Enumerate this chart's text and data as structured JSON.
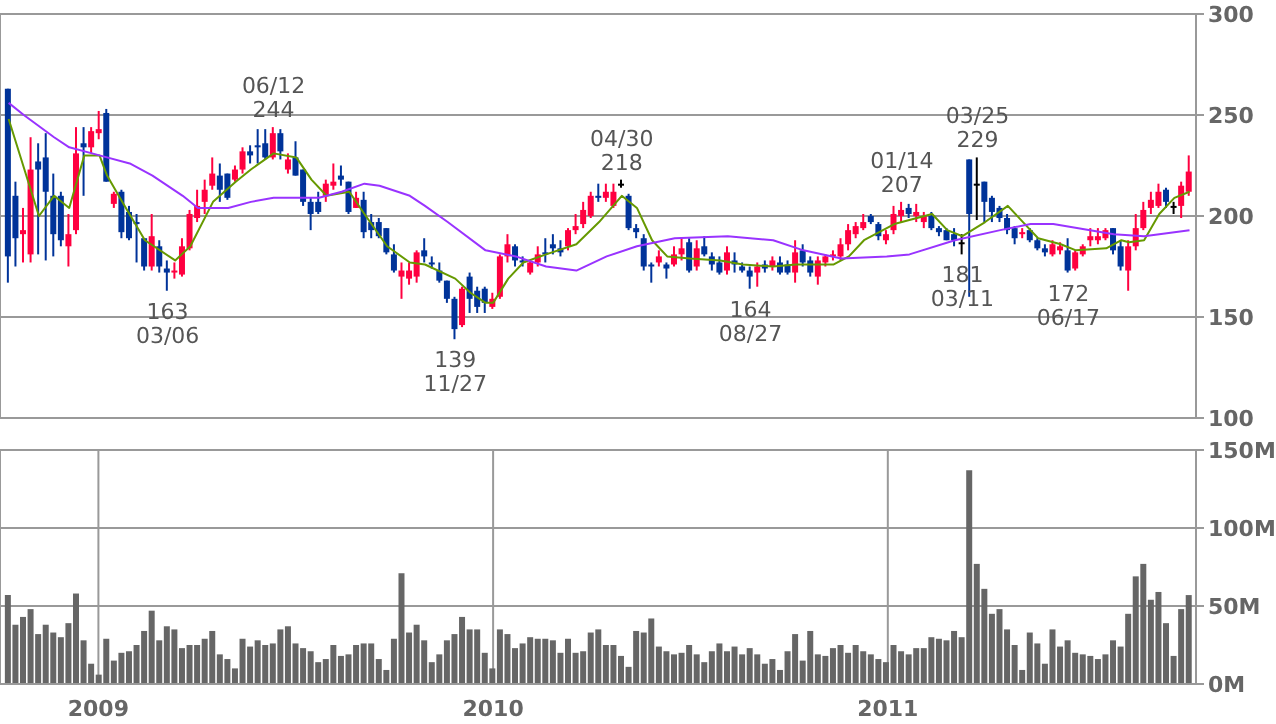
{
  "chart_data": [
    {
      "type": "candlestick",
      "x": [
        "2008-10-10",
        "2008-10-17",
        "2008-10-24",
        "2008-10-31",
        "2008-11-07",
        "2008-11-14",
        "2008-11-21",
        "2008-11-28",
        "2008-12-05",
        "2008-12-12",
        "2008-12-19",
        "2008-12-26",
        "2009-01-02",
        "2009-01-09",
        "2009-01-16",
        "2009-01-23",
        "2009-01-30",
        "2009-02-06",
        "2009-02-13",
        "2009-02-20",
        "2009-02-27",
        "2009-03-06",
        "2009-03-13",
        "2009-03-20",
        "2009-03-27",
        "2009-04-03",
        "2009-04-10",
        "2009-04-17",
        "2009-04-24",
        "2009-05-01",
        "2009-05-08",
        "2009-05-15",
        "2009-05-22",
        "2009-05-29",
        "2009-06-05",
        "2009-06-12",
        "2009-06-19",
        "2009-06-26",
        "2009-07-03",
        "2009-07-10",
        "2009-07-17",
        "2009-07-24",
        "2009-07-31",
        "2009-08-07",
        "2009-08-14",
        "2009-08-21",
        "2009-08-28",
        "2009-09-04",
        "2009-09-11",
        "2009-09-18",
        "2009-09-25",
        "2009-10-02",
        "2009-10-09",
        "2009-10-16",
        "2009-10-23",
        "2009-10-30",
        "2009-11-06",
        "2009-11-13",
        "2009-11-20",
        "2009-11-27",
        "2009-12-04",
        "2009-12-11",
        "2009-12-18",
        "2009-12-25",
        "2010-01-01",
        "2010-01-08",
        "2010-01-15",
        "2010-01-22",
        "2010-01-29",
        "2010-02-05",
        "2010-02-12",
        "2010-02-19",
        "2010-02-26",
        "2010-03-05",
        "2010-03-12",
        "2010-03-19",
        "2010-03-26",
        "2010-04-02",
        "2010-04-09",
        "2010-04-16",
        "2010-04-23",
        "2010-04-30",
        "2010-05-07",
        "2010-05-14",
        "2010-05-21",
        "2010-05-28",
        "2010-06-04",
        "2010-06-11",
        "2010-06-18",
        "2010-06-25",
        "2010-07-02",
        "2010-07-09",
        "2010-07-16",
        "2010-07-23",
        "2010-07-30",
        "2010-08-06",
        "2010-08-13",
        "2010-08-20",
        "2010-08-27",
        "2010-09-03",
        "2010-09-10",
        "2010-09-17",
        "2010-09-24",
        "2010-10-01",
        "2010-10-08",
        "2010-10-15",
        "2010-10-22",
        "2010-10-29",
        "2010-11-05",
        "2010-11-12",
        "2010-11-19",
        "2010-11-26",
        "2010-12-03",
        "2010-12-10",
        "2010-12-17",
        "2010-12-24",
        "2010-12-31",
        "2011-01-07",
        "2011-01-14",
        "2011-01-21",
        "2011-01-28",
        "2011-02-04",
        "2011-02-11",
        "2011-02-18",
        "2011-02-25",
        "2011-03-04",
        "2011-03-11",
        "2011-03-18",
        "2011-03-25",
        "2011-04-01",
        "2011-04-08",
        "2011-04-15",
        "2011-04-22",
        "2011-04-29",
        "2011-05-06",
        "2011-05-13",
        "2011-05-20",
        "2011-05-27",
        "2011-06-03",
        "2011-06-10",
        "2011-06-17",
        "2011-06-24",
        "2011-07-01",
        "2011-07-08",
        "2011-07-15",
        "2011-07-22",
        "2011-07-29",
        "2011-08-05",
        "2011-08-12",
        "2011-08-19",
        "2011-08-26",
        "2011-09-02",
        "2011-09-09",
        "2011-09-16",
        "2011-09-23",
        "2011-09-30",
        "2011-10-07"
      ],
      "ohlc": [
        [
          263,
          263,
          167,
          180
        ],
        [
          210,
          217,
          175,
          189
        ],
        [
          191,
          204,
          177,
          193
        ],
        [
          181,
          239,
          177,
          223
        ],
        [
          227,
          236,
          181,
          223
        ],
        [
          229,
          241,
          178,
          212
        ],
        [
          210,
          221,
          180,
          191
        ],
        [
          210,
          212,
          185,
          188
        ],
        [
          185,
          201,
          175,
          191
        ],
        [
          193,
          244,
          191,
          231
        ],
        [
          236,
          244,
          210,
          234
        ],
        [
          234,
          244,
          231,
          242
        ],
        [
          241,
          252,
          238,
          243
        ],
        [
          251,
          253,
          217,
          217
        ],
        [
          206,
          212,
          204,
          211
        ],
        [
          212,
          213,
          189,
          192
        ],
        [
          202,
          205,
          188,
          189
        ],
        [
          197,
          201,
          177,
          196
        ],
        [
          189,
          189,
          173,
          175
        ],
        [
          175,
          201,
          173,
          190
        ],
        [
          185,
          188,
          172,
          175
        ],
        [
          174,
          178,
          163,
          172
        ],
        [
          172,
          177,
          169,
          173
        ],
        [
          171,
          189,
          170,
          185
        ],
        [
          184,
          203,
          183,
          201
        ],
        [
          199,
          213,
          197,
          205
        ],
        [
          207,
          218,
          201,
          213
        ],
        [
          215,
          229,
          213,
          221
        ],
        [
          220,
          226,
          207,
          213
        ],
        [
          221,
          221,
          208,
          209
        ],
        [
          218,
          225,
          217,
          223
        ],
        [
          223,
          234,
          221,
          232
        ],
        [
          232,
          235,
          226,
          230
        ],
        [
          235,
          243,
          226,
          234
        ],
        [
          236,
          243,
          228,
          229
        ],
        [
          229,
          244,
          228,
          241
        ],
        [
          241,
          243,
          228,
          232
        ],
        [
          223,
          231,
          221,
          228
        ],
        [
          229,
          237,
          220,
          220
        ],
        [
          223,
          223,
          205,
          207
        ],
        [
          207,
          209,
          193,
          201
        ],
        [
          207,
          212,
          201,
          202
        ],
        [
          210,
          218,
          207,
          216
        ],
        [
          215,
          226,
          213,
          217
        ],
        [
          220,
          225,
          215,
          218
        ],
        [
          217,
          217,
          201,
          202
        ],
        [
          204,
          212,
          204,
          209
        ],
        [
          208,
          212,
          189,
          192
        ],
        [
          197,
          201,
          189,
          193
        ],
        [
          197,
          199,
          189,
          190
        ],
        [
          194,
          194,
          181,
          182
        ],
        [
          181,
          186,
          172,
          173
        ],
        [
          170,
          177,
          159,
          173
        ],
        [
          169,
          177,
          166,
          173
        ],
        [
          170,
          183,
          167,
          182
        ],
        [
          183,
          189,
          177,
          180
        ],
        [
          177,
          180,
          174,
          176
        ],
        [
          173,
          177,
          167,
          168
        ],
        [
          168,
          168,
          157,
          159
        ],
        [
          159,
          160,
          139,
          144
        ],
        [
          146,
          165,
          145,
          164
        ],
        [
          170,
          172,
          152,
          159
        ],
        [
          163,
          165,
          152,
          155
        ],
        [
          164,
          165,
          152,
          157
        ],
        [
          155,
          162,
          154,
          159
        ],
        [
          160,
          181,
          159,
          180
        ],
        [
          180,
          191,
          177,
          186
        ],
        [
          185,
          186,
          175,
          178
        ],
        [
          178,
          180,
          175,
          177
        ],
        [
          172,
          178,
          171,
          177
        ],
        [
          177,
          185,
          175,
          181
        ],
        [
          182,
          189,
          177,
          181
        ],
        [
          186,
          191,
          181,
          184
        ],
        [
          184,
          188,
          180,
          182
        ],
        [
          185,
          194,
          183,
          193
        ],
        [
          193,
          201,
          191,
          195
        ],
        [
          196,
          207,
          194,
          203
        ],
        [
          200,
          212,
          199,
          210
        ],
        [
          210,
          216,
          207,
          209
        ],
        [
          209,
          216,
          207,
          212
        ],
        [
          205,
          216,
          204,
          212
        ],
        [
          216,
          218,
          214,
          216
        ],
        [
          210,
          211,
          193,
          194
        ],
        [
          194,
          196,
          189,
          192
        ],
        [
          189,
          191,
          173,
          175
        ],
        [
          176,
          177,
          167,
          175
        ],
        [
          177,
          183,
          175,
          180
        ],
        [
          176,
          177,
          169,
          174
        ],
        [
          176,
          185,
          175,
          181
        ],
        [
          181,
          189,
          178,
          184
        ],
        [
          187,
          189,
          172,
          173
        ],
        [
          175,
          188,
          173,
          184
        ],
        [
          185,
          190,
          180,
          181
        ],
        [
          180,
          182,
          173,
          176
        ],
        [
          177,
          180,
          171,
          172
        ],
        [
          173,
          185,
          171,
          182
        ],
        [
          178,
          182,
          172,
          176
        ],
        [
          175,
          177,
          172,
          173
        ],
        [
          173,
          175,
          164,
          170
        ],
        [
          172,
          177,
          165,
          175
        ],
        [
          176,
          178,
          172,
          174
        ],
        [
          175,
          180,
          173,
          178
        ],
        [
          177,
          180,
          171,
          172
        ],
        [
          176,
          178,
          171,
          172
        ],
        [
          172,
          188,
          167,
          182
        ],
        [
          183,
          186,
          175,
          177
        ],
        [
          178,
          180,
          170,
          172
        ],
        [
          170,
          180,
          166,
          178
        ],
        [
          177,
          181,
          175,
          180
        ],
        [
          180,
          183,
          178,
          181
        ],
        [
          180,
          189,
          178,
          186
        ],
        [
          186,
          196,
          183,
          193
        ],
        [
          191,
          197,
          189,
          195
        ],
        [
          194,
          201,
          193,
          197
        ],
        [
          200,
          201,
          196,
          197
        ],
        [
          196,
          197,
          188,
          190
        ],
        [
          188,
          193,
          186,
          191
        ],
        [
          193,
          205,
          191,
          201
        ],
        [
          200,
          207,
          197,
          203
        ],
        [
          204,
          206,
          199,
          201
        ],
        [
          200,
          206,
          197,
          202
        ],
        [
          197,
          202,
          194,
          200
        ],
        [
          200,
          202,
          193,
          194
        ],
        [
          194,
          195,
          190,
          192
        ],
        [
          193,
          194,
          188,
          188
        ],
        [
          191,
          194,
          185,
          188
        ],
        [
          187,
          191,
          181,
          187
        ],
        [
          228,
          228,
          160,
          201
        ],
        [
          216,
          229,
          198,
          216
        ],
        [
          217,
          217,
          197,
          207
        ],
        [
          209,
          210,
          197,
          202
        ],
        [
          204,
          205,
          197,
          199
        ],
        [
          199,
          201,
          191,
          193
        ],
        [
          194,
          195,
          186,
          189
        ],
        [
          191,
          194,
          189,
          192
        ],
        [
          193,
          194,
          187,
          188
        ],
        [
          188,
          189,
          183,
          184
        ],
        [
          184,
          186,
          180,
          182
        ],
        [
          181,
          188,
          180,
          186
        ],
        [
          183,
          187,
          181,
          185
        ],
        [
          183,
          189,
          172,
          173
        ],
        [
          174,
          183,
          173,
          182
        ],
        [
          181,
          186,
          180,
          185
        ],
        [
          188,
          194,
          185,
          190
        ],
        [
          188,
          194,
          186,
          190
        ],
        [
          189,
          194,
          188,
          193
        ],
        [
          194,
          194,
          181,
          183
        ],
        [
          185,
          188,
          173,
          175
        ],
        [
          173,
          188,
          163,
          185
        ],
        [
          185,
          201,
          183,
          194
        ],
        [
          194,
          207,
          193,
          203
        ],
        [
          204,
          212,
          201,
          208
        ],
        [
          205,
          216,
          204,
          212
        ],
        [
          213,
          214,
          204,
          207
        ],
        [
          205,
          207,
          201,
          205
        ],
        [
          205,
          217,
          199,
          215
        ],
        [
          212,
          230,
          210,
          222
        ]
      ],
      "colors": [
        "#003399",
        "#003399",
        "#ff0040",
        "#ff0040",
        "#003399",
        "#003399",
        "#003399",
        "#003399",
        "#ff0040",
        "#ff0040",
        "#003399",
        "#ff0040",
        "#ff0040",
        "#003399",
        "#ff0040",
        "#003399",
        "#003399",
        "#003399",
        "#003399",
        "#ff0040",
        "#003399",
        "#003399",
        "#ff0040",
        "#ff0040",
        "#ff0040",
        "#ff0040",
        "#ff0040",
        "#ff0040",
        "#003399",
        "#003399",
        "#ff0040",
        "#ff0040",
        "#003399",
        "#003399",
        "#003399",
        "#ff0040",
        "#003399",
        "#ff0040",
        "#003399",
        "#003399",
        "#003399",
        "#003399",
        "#ff0040",
        "#ff0040",
        "#003399",
        "#003399",
        "#ff0040",
        "#003399",
        "#003399",
        "#003399",
        "#003399",
        "#003399",
        "#ff0040",
        "#ff0040",
        "#ff0040",
        "#003399",
        "#003399",
        "#003399",
        "#003399",
        "#003399",
        "#ff0040",
        "#003399",
        "#003399",
        "#003399",
        "#ff0040",
        "#ff0040",
        "#ff0040",
        "#003399",
        "#003399",
        "#ff0040",
        "#ff0040",
        "#003399",
        "#003399",
        "#003399",
        "#ff0040",
        "#ff0040",
        "#ff0040",
        "#ff0040",
        "#003399",
        "#ff0040",
        "#ff0040",
        "#000000",
        "#003399",
        "#003399",
        "#003399",
        "#003399",
        "#ff0040",
        "#003399",
        "#ff0040",
        "#ff0040",
        "#003399",
        "#ff0040",
        "#003399",
        "#003399",
        "#003399",
        "#ff0040",
        "#003399",
        "#003399",
        "#003399",
        "#ff0040",
        "#003399",
        "#ff0040",
        "#003399",
        "#003399",
        "#ff0040",
        "#003399",
        "#003399",
        "#ff0040",
        "#ff0040",
        "#ff0040",
        "#ff0040",
        "#ff0040",
        "#ff0040",
        "#ff0040",
        "#003399",
        "#003399",
        "#ff0040",
        "#ff0040",
        "#ff0040",
        "#003399",
        "#ff0040",
        "#ff0040",
        "#003399",
        "#003399",
        "#003399",
        "#003399",
        "#000000",
        "#003399",
        "#000000",
        "#003399",
        "#003399",
        "#003399",
        "#003399",
        "#003399",
        "#ff0040",
        "#003399",
        "#003399",
        "#003399",
        "#ff0040",
        "#ff0040",
        "#003399",
        "#ff0040",
        "#ff0040",
        "#ff0040",
        "#ff0040",
        "#ff0040",
        "#003399",
        "#003399",
        "#ff0040",
        "#ff0040",
        "#ff0040",
        "#ff0040",
        "#ff0040",
        "#003399",
        "#000000",
        "#ff0040",
        "#ff0040"
      ],
      "series": [
        {
          "type": "line",
          "color": "#669900",
          "x": [
            "2008-10-10",
            "2008-11-07",
            "2008-11-21",
            "2008-12-05",
            "2008-12-19",
            "2009-01-02",
            "2009-01-09",
            "2009-01-23",
            "2009-02-13",
            "2009-03-13",
            "2009-03-27",
            "2009-04-17",
            "2009-05-08",
            "2009-05-22",
            "2009-06-12",
            "2009-07-03",
            "2009-07-17",
            "2009-07-31",
            "2009-08-21",
            "2009-09-04",
            "2009-09-25",
            "2009-10-16",
            "2009-10-30",
            "2009-11-27",
            "2009-12-11",
            "2009-12-25",
            "2010-01-01",
            "2010-01-15",
            "2010-01-29",
            "2010-02-19",
            "2010-03-19",
            "2010-04-09",
            "2010-04-30",
            "2010-05-14",
            "2010-05-28",
            "2010-06-11",
            "2010-07-02",
            "2010-07-30",
            "2010-08-20",
            "2010-09-17",
            "2010-10-08",
            "2010-11-12",
            "2010-11-26",
            "2010-12-10",
            "2011-01-07",
            "2011-02-11",
            "2011-02-25",
            "2011-03-11",
            "2011-04-01",
            "2011-04-22",
            "2011-05-06",
            "2011-05-20",
            "2011-06-10",
            "2011-06-24",
            "2011-07-22",
            "2011-08-05",
            "2011-08-12",
            "2011-08-26",
            "2011-09-09",
            "2011-09-23",
            "2011-10-07"
          ],
          "values": [
            248,
            200,
            210,
            204,
            230,
            230,
            220,
            207,
            188,
            178,
            185,
            207,
            217,
            223,
            231,
            229,
            218,
            210,
            212,
            201,
            185,
            177,
            176,
            169,
            162,
            157,
            157,
            169,
            177,
            181,
            186,
            197,
            210,
            204,
            188,
            180,
            179,
            178,
            176,
            175,
            176,
            176,
            180,
            188,
            196,
            201,
            193,
            190,
            197,
            205,
            197,
            189,
            186,
            183,
            184,
            188,
            187,
            188,
            201,
            209,
            212
          ]
        },
        {
          "type": "line",
          "color": "#9933ff",
          "x": [
            "2008-10-10",
            "2008-10-24",
            "2008-11-21",
            "2008-12-05",
            "2009-01-02",
            "2009-01-30",
            "2009-02-20",
            "2009-03-20",
            "2009-04-03",
            "2009-05-01",
            "2009-05-22",
            "2009-06-12",
            "2009-07-03",
            "2009-07-24",
            "2009-08-14",
            "2009-09-04",
            "2009-09-18",
            "2009-10-16",
            "2009-10-30",
            "2009-11-20",
            "2009-12-25",
            "2010-01-22",
            "2010-02-19",
            "2010-03-19",
            "2010-04-16",
            "2010-05-14",
            "2010-06-18",
            "2010-08-06",
            "2010-09-17",
            "2010-10-15",
            "2010-11-19",
            "2010-12-31",
            "2011-01-21",
            "2011-03-04",
            "2011-04-15",
            "2011-05-13",
            "2011-06-03",
            "2011-07-29",
            "2011-08-26",
            "2011-10-07"
          ],
          "values": [
            256,
            250,
            239,
            234,
            230,
            226,
            220,
            210,
            204,
            204,
            207,
            209,
            209,
            209,
            212,
            216,
            215,
            210,
            205,
            197,
            183,
            180,
            175,
            173,
            180,
            185,
            189,
            190,
            188,
            183,
            179,
            180,
            181,
            188,
            193,
            196,
            196,
            191,
            190,
            193
          ]
        }
      ],
      "annotations": [
        {
          "text": "06/12 244",
          "x": "2009-06-12",
          "y": 244
        },
        {
          "text": "163 03/06",
          "x": "2009-03-06",
          "y": 163
        },
        {
          "text": "139 11/27",
          "x": "2009-11-27",
          "y": 139
        },
        {
          "text": "04/30 218",
          "x": "2010-04-30",
          "y": 218
        },
        {
          "text": "164 08/27",
          "x": "2010-08-27",
          "y": 164
        },
        {
          "text": "01/14 207",
          "x": "2011-01-14",
          "y": 207
        },
        {
          "text": "03/25 229",
          "x": "2011-03-25",
          "y": 229
        },
        {
          "text": "181 03/11",
          "x": "2011-03-11",
          "y": 181
        },
        {
          "text": "172 06/17",
          "x": "2011-06-17",
          "y": 172
        }
      ],
      "xlim": [
        "2008-10-02",
        "2011-10-13"
      ],
      "xticks": [
        "2009",
        "2010",
        "2011"
      ],
      "ylim": [
        100,
        300
      ],
      "yticks": [
        100,
        150,
        200,
        250,
        300
      ],
      "grid": true,
      "tick_labels": "y"
    },
    {
      "type": "bar",
      "color": "#666666",
      "x": [
        "2008-10-10",
        "2008-10-17",
        "2008-10-24",
        "2008-10-31",
        "2008-11-07",
        "2008-11-14",
        "2008-11-21",
        "2008-11-28",
        "2008-12-05",
        "2008-12-12",
        "2008-12-19",
        "2008-12-26",
        "2009-01-02",
        "2009-01-09",
        "2009-01-16",
        "2009-01-23",
        "2009-01-30",
        "2009-02-06",
        "2009-02-13",
        "2009-02-20",
        "2009-02-27",
        "2009-03-06",
        "2009-03-13",
        "2009-03-20",
        "2009-03-27",
        "2009-04-03",
        "2009-04-10",
        "2009-04-17",
        "2009-04-24",
        "2009-05-01",
        "2009-05-08",
        "2009-05-15",
        "2009-05-22",
        "2009-05-29",
        "2009-06-05",
        "2009-06-12",
        "2009-06-19",
        "2009-06-26",
        "2009-07-03",
        "2009-07-10",
        "2009-07-17",
        "2009-07-24",
        "2009-07-31",
        "2009-08-07",
        "2009-08-14",
        "2009-08-21",
        "2009-08-28",
        "2009-09-04",
        "2009-09-11",
        "2009-09-18",
        "2009-09-25",
        "2009-10-02",
        "2009-10-09",
        "2009-10-16",
        "2009-10-23",
        "2009-10-30",
        "2009-11-06",
        "2009-11-13",
        "2009-11-20",
        "2009-11-27",
        "2009-12-04",
        "2009-12-11",
        "2009-12-18",
        "2009-12-25",
        "2010-01-01",
        "2010-01-08",
        "2010-01-15",
        "2010-01-22",
        "2010-01-29",
        "2010-02-05",
        "2010-02-12",
        "2010-02-19",
        "2010-02-26",
        "2010-03-05",
        "2010-03-12",
        "2010-03-19",
        "2010-03-26",
        "2010-04-02",
        "2010-04-09",
        "2010-04-16",
        "2010-04-23",
        "2010-04-30",
        "2010-05-07",
        "2010-05-14",
        "2010-05-21",
        "2010-05-28",
        "2010-06-04",
        "2010-06-11",
        "2010-06-18",
        "2010-06-25",
        "2010-07-02",
        "2010-07-09",
        "2010-07-16",
        "2010-07-23",
        "2010-07-30",
        "2010-08-06",
        "2010-08-13",
        "2010-08-20",
        "2010-08-27",
        "2010-09-03",
        "2010-09-10",
        "2010-09-17",
        "2010-09-24",
        "2010-10-01",
        "2010-10-08",
        "2010-10-15",
        "2010-10-22",
        "2010-10-29",
        "2010-11-05",
        "2010-11-12",
        "2010-11-19",
        "2010-11-26",
        "2010-12-03",
        "2010-12-10",
        "2010-12-17",
        "2010-12-24",
        "2010-12-31",
        "2011-01-07",
        "2011-01-14",
        "2011-01-21",
        "2011-01-28",
        "2011-02-04",
        "2011-02-11",
        "2011-02-18",
        "2011-02-25",
        "2011-03-04",
        "2011-03-11",
        "2011-03-18",
        "2011-03-25",
        "2011-04-01",
        "2011-04-08",
        "2011-04-15",
        "2011-04-22",
        "2011-04-29",
        "2011-05-06",
        "2011-05-13",
        "2011-05-20",
        "2011-05-27",
        "2011-06-03",
        "2011-06-10",
        "2011-06-17",
        "2011-06-24",
        "2011-07-01",
        "2011-07-08",
        "2011-07-15",
        "2011-07-22",
        "2011-07-29",
        "2011-08-05",
        "2011-08-12",
        "2011-08-19",
        "2011-08-26",
        "2011-09-02",
        "2011-09-09",
        "2011-09-16",
        "2011-09-23",
        "2011-09-30",
        "2011-10-07"
      ],
      "values": [
        57,
        38,
        43,
        48,
        32,
        38,
        33,
        30,
        39,
        58,
        28,
        13,
        6,
        29,
        15,
        20,
        21,
        25,
        34,
        47,
        28,
        37,
        35,
        23,
        25,
        25,
        29,
        34,
        19,
        16,
        10,
        29,
        24,
        28,
        25,
        26,
        35,
        37,
        26,
        23,
        21,
        14,
        16,
        25,
        18,
        19,
        25,
        26,
        26,
        16,
        9,
        29,
        71,
        33,
        38,
        28,
        14,
        19,
        28,
        32,
        43,
        35,
        35,
        20,
        10,
        35,
        32,
        23,
        26,
        30,
        29,
        29,
        28,
        20,
        29,
        20,
        21,
        33,
        35,
        25,
        25,
        18,
        11,
        34,
        33,
        42,
        24,
        21,
        19,
        20,
        25,
        19,
        14,
        21,
        26,
        21,
        24,
        19,
        23,
        19,
        13,
        16,
        9,
        21,
        32,
        15,
        34,
        19,
        18,
        23,
        25,
        20,
        25,
        21,
        19,
        16,
        14,
        25,
        21,
        19,
        23,
        23,
        30,
        29,
        28,
        34,
        30,
        137,
        77,
        61,
        45,
        48,
        35,
        25,
        9,
        33,
        26,
        13,
        35,
        24,
        28,
        20,
        19,
        18,
        16,
        19,
        28,
        24,
        45,
        69,
        77,
        54,
        59,
        39,
        18,
        48,
        57
      ],
      "xlim": [
        "2008-10-02",
        "2011-10-13"
      ],
      "xticks": [
        "2009",
        "2010",
        "2011"
      ],
      "ylim": [
        0,
        150
      ],
      "yticks": [
        {
          "value": 0,
          "label": "0M"
        },
        {
          "value": 50,
          "label": "50M"
        },
        {
          "value": 100,
          "label": "100M"
        },
        {
          "value": 150,
          "label": "150M"
        }
      ],
      "grid": true
    }
  ]
}
